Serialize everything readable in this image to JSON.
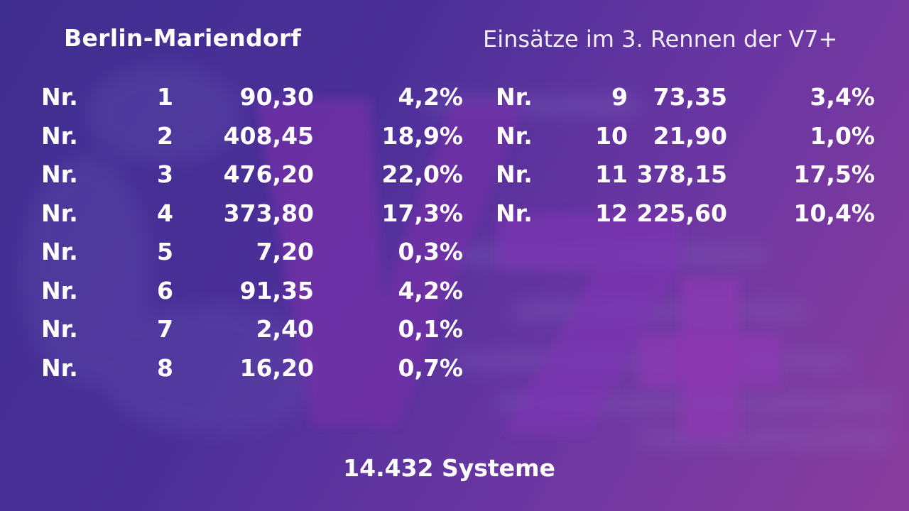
{
  "header": {
    "venue": "Berlin-Mariendorf",
    "race_title": "Einsätze im 3. Rennen der V7+"
  },
  "left_column": [
    {
      "label": "Nr.",
      "number": "1",
      "amount": "90,30",
      "percent": "4,2%"
    },
    {
      "label": "Nr.",
      "number": "2",
      "amount": "408,45",
      "percent": "18,9%"
    },
    {
      "label": "Nr.",
      "number": "3",
      "amount": "476,20",
      "percent": "22,0%"
    },
    {
      "label": "Nr.",
      "number": "4",
      "amount": "373,80",
      "percent": "17,3%"
    },
    {
      "label": "Nr.",
      "number": "5",
      "amount": "7,20",
      "percent": "0,3%"
    },
    {
      "label": "Nr.",
      "number": "6",
      "amount": "91,35",
      "percent": "4,2%"
    },
    {
      "label": "Nr.",
      "number": "7",
      "amount": "2,40",
      "percent": "0,1%"
    },
    {
      "label": "Nr.",
      "number": "8",
      "amount": "16,20",
      "percent": "0,7%"
    }
  ],
  "right_column": [
    {
      "label": "Nr.",
      "number": "9",
      "amount": "73,35",
      "percent": "3,4%"
    },
    {
      "label": "Nr.",
      "number": "10",
      "amount": "21,90",
      "percent": "1,0%"
    },
    {
      "label": "Nr.",
      "number": "11",
      "amount": "378,15",
      "percent": "17,5%"
    },
    {
      "label": "Nr.",
      "number": "12",
      "amount": "225,60",
      "percent": "10,4%"
    }
  ],
  "footer": {
    "systems": "14.432 Systeme"
  },
  "colors": {
    "text": "#ffffff",
    "logo_fill": "#7a34b0"
  },
  "logo": {
    "icon": "v7plus-watermark-icon",
    "text": "V7+"
  }
}
